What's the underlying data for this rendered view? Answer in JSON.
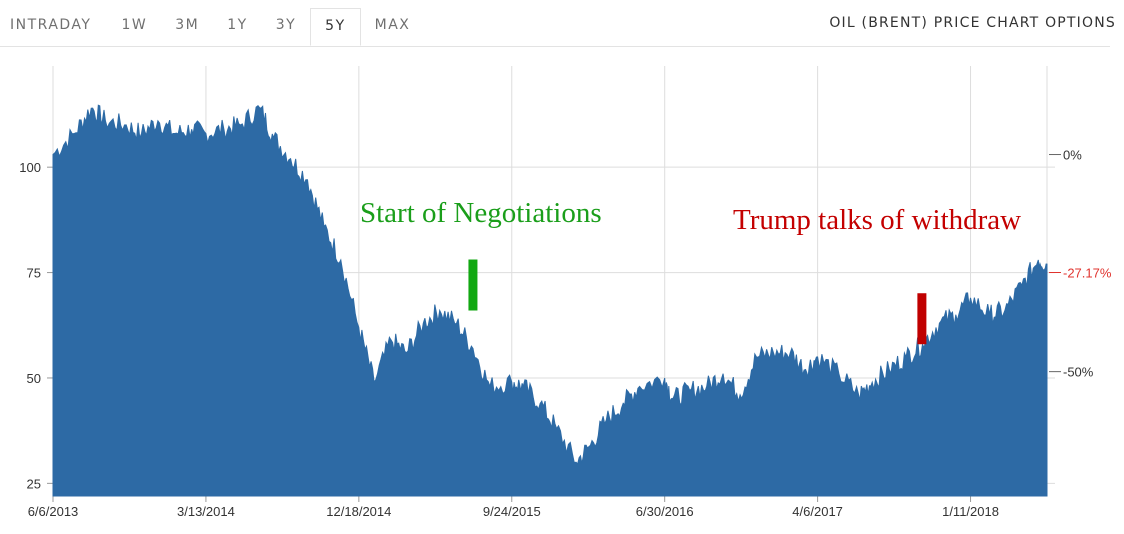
{
  "header": {
    "tabs": [
      {
        "label": "INTRADAY",
        "active": false
      },
      {
        "label": "1W",
        "active": false
      },
      {
        "label": "3M",
        "active": false
      },
      {
        "label": "1Y",
        "active": false
      },
      {
        "label": "3Y",
        "active": false
      },
      {
        "label": "5Y",
        "active": true
      },
      {
        "label": "MAX",
        "active": false
      }
    ],
    "options_label": "OIL (BRENT) PRICE CHART OPTIONS"
  },
  "colors": {
    "area_fill": "#2d6aa5",
    "grid": "#dddddd",
    "annotation_green": "#1a9e1a",
    "annotation_red": "#c40000",
    "marker_green": "#12a812",
    "marker_red": "#c00000",
    "change_negative": "#e0332e"
  },
  "chart_data": {
    "type": "area",
    "title": "",
    "xlabel": "",
    "ylabel": "",
    "x_ticks": [
      "6/6/2013",
      "3/13/2014",
      "12/18/2014",
      "9/24/2015",
      "6/30/2016",
      "4/6/2017",
      "1/11/2018"
    ],
    "y_ticks_left": [
      25,
      50,
      75,
      100
    ],
    "y_ticks_right": [
      "0%",
      "-27.17%",
      "-50%"
    ],
    "ylim": [
      22,
      124
    ],
    "grid": true,
    "series": [
      {
        "x": [
          "6/6/2013",
          "7/15/2013",
          "8/15/2013",
          "9/10/2013",
          "10/15/2013",
          "11/15/2013",
          "12/15/2013",
          "1/15/2014",
          "2/15/2014",
          "3/13/2014",
          "4/15/2014",
          "5/15/2014",
          "6/20/2014",
          "7/15/2014",
          "8/15/2014",
          "9/15/2014",
          "10/15/2014",
          "11/15/2014",
          "12/18/2014",
          "1/15/2015",
          "2/15/2015",
          "3/15/2015",
          "4/15/2015",
          "5/15/2015",
          "6/15/2015",
          "7/15/2015",
          "8/15/2015",
          "9/24/2015",
          "10/15/2015",
          "11/15/2015",
          "12/15/2015",
          "1/20/2016",
          "2/15/2016",
          "3/15/2016",
          "4/15/2016",
          "5/15/2016",
          "6/30/2016",
          "7/15/2016",
          "8/15/2016",
          "9/15/2016",
          "10/15/2016",
          "11/15/2016",
          "12/15/2016",
          "1/15/2017",
          "2/15/2017",
          "3/15/2017",
          "4/6/2017",
          "5/15/2017",
          "6/20/2017",
          "7/15/2017",
          "8/15/2017",
          "9/15/2017",
          "10/15/2017",
          "11/15/2017",
          "12/15/2017",
          "1/11/2018",
          "2/15/2018",
          "3/15/2018",
          "4/15/2018",
          "5/15/2018",
          "5/31/2018"
        ],
        "values": [
          103,
          108,
          114,
          111,
          110,
          108,
          111,
          108,
          109,
          108,
          109,
          110,
          114,
          107,
          102,
          97,
          86,
          78,
          62,
          49,
          59,
          56,
          63,
          66,
          63,
          57,
          48,
          49,
          48,
          44,
          38,
          30,
          34,
          40,
          44,
          48,
          50,
          45,
          47,
          48,
          51,
          46,
          55,
          56,
          56,
          52,
          55,
          51,
          46,
          49,
          52,
          55,
          58,
          63,
          65,
          69,
          65,
          66,
          72,
          78,
          77
        ]
      }
    ],
    "annotations": [
      {
        "text": "Start of Negotiations",
        "date": "7/14/2015",
        "value": 66
      },
      {
        "text": "Trump talks of withdraw",
        "date": "10/13/2017",
        "value": 58
      }
    ]
  }
}
